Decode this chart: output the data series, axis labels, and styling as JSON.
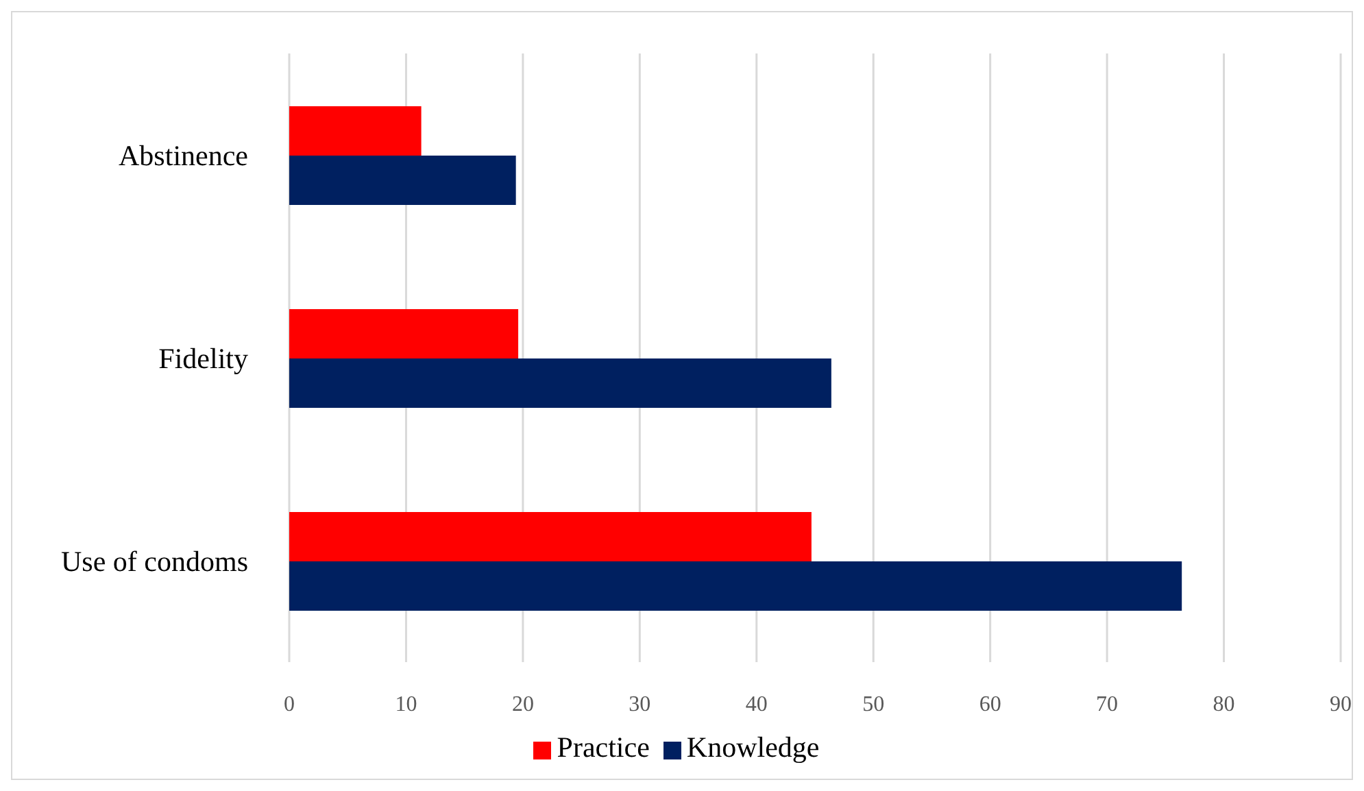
{
  "chart_data": {
    "type": "bar",
    "orientation": "horizontal",
    "categories": [
      "Abstinence",
      "Fidelity",
      "Use of condoms"
    ],
    "series": [
      {
        "name": "Practice",
        "color": "#ff0000",
        "values": [
          11.3,
          19.6,
          44.7
        ]
      },
      {
        "name": "Knowledge",
        "color": "#002060",
        "values": [
          19.4,
          46.4,
          76.4
        ]
      }
    ],
    "xlim": [
      0,
      90
    ],
    "xticks": [
      0,
      10,
      20,
      30,
      40,
      50,
      60,
      70,
      80,
      90
    ],
    "grid": "x",
    "legend": "bottom"
  }
}
